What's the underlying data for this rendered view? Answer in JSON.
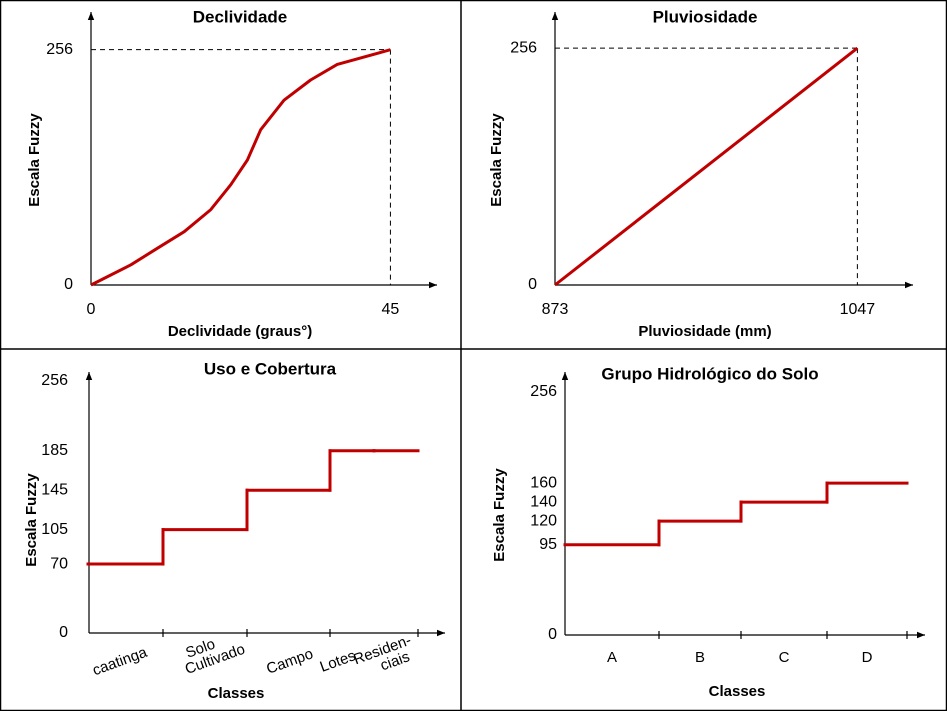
{
  "chart_data": [
    {
      "type": "line",
      "title": "Declividade",
      "x_label": "Declividade (graus°)",
      "y_label": "Escala Fuzzy",
      "x": [
        0,
        6,
        10,
        14,
        18,
        21,
        23.5,
        25.5,
        29,
        33,
        37,
        45
      ],
      "series": [
        {
          "name": "Declividade",
          "color": "#c00000",
          "values": [
            0,
            22,
            40,
            58,
            82,
            109,
            136,
            169,
            201,
            223,
            240,
            256
          ]
        }
      ],
      "xlim": [
        0,
        52
      ],
      "ylim": [
        0,
        297
      ],
      "xticks": [
        0,
        45
      ],
      "yticks": [
        0,
        256
      ]
    },
    {
      "type": "line",
      "title": "Pluviosidade",
      "x_label": "Pluviosidade (mm)",
      "y_label": "Escala Fuzzy",
      "x": [
        873,
        1047
      ],
      "series": [
        {
          "name": "Pluviosidade",
          "color": "#c00000",
          "values": [
            0,
            256
          ]
        }
      ],
      "xlim": [
        873,
        1079
      ],
      "ylim": [
        0,
        295
      ],
      "xticks": [
        873,
        1047
      ],
      "yticks": [
        0,
        256
      ]
    },
    {
      "type": "step",
      "title": "Uso e Cobertura",
      "x_label": "Classes",
      "y_label": "Escala Fuzzy",
      "categories": [
        "caatinga",
        "Solo Cultivado",
        "Campo",
        "Lotes",
        "Residen-ciais"
      ],
      "series": [
        {
          "name": "Uso e Cobertura",
          "color": "#c00000",
          "values": [
            70,
            105,
            145,
            185,
            185
          ]
        }
      ],
      "ylim": [
        0,
        265
      ],
      "yticks": [
        0,
        70,
        105,
        145,
        185,
        256
      ]
    },
    {
      "type": "step",
      "title": "Grupo Hidrológico do Solo",
      "x_label": "Classes",
      "y_label": "Escala Fuzzy",
      "categories": [
        "A",
        "B",
        "C",
        "D"
      ],
      "series": [
        {
          "name": "Grupo Hidrológico do Solo",
          "color": "#c00000",
          "values": [
            95,
            120,
            140,
            160
          ]
        }
      ],
      "ylim": [
        0,
        277
      ],
      "yticks": [
        0,
        95,
        120,
        140,
        160,
        256
      ]
    }
  ]
}
